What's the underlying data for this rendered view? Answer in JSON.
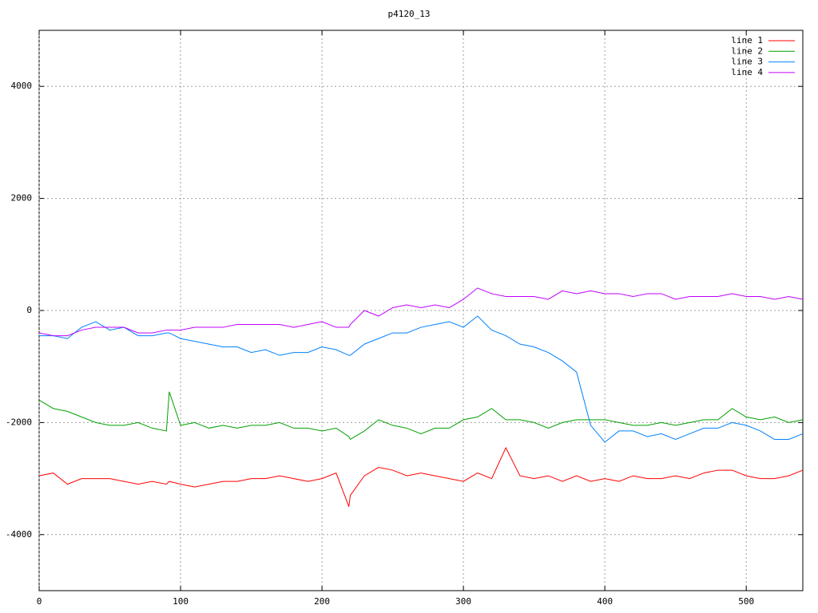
{
  "chart_data": {
    "type": "line",
    "title": "p4120_13",
    "x": [
      0,
      10,
      20,
      30,
      40,
      50,
      60,
      70,
      80,
      90,
      92,
      100,
      110,
      120,
      130,
      140,
      150,
      160,
      170,
      180,
      190,
      200,
      210,
      219,
      220,
      230,
      240,
      250,
      260,
      270,
      280,
      290,
      300,
      310,
      320,
      330,
      340,
      350,
      360,
      370,
      380,
      390,
      400,
      410,
      420,
      430,
      440,
      450,
      460,
      470,
      480,
      490,
      500,
      510,
      520,
      530,
      540
    ],
    "series": [
      {
        "name": "line 1",
        "color": "#ff0000",
        "values": [
          -2950,
          -2900,
          -3100,
          -3000,
          -3000,
          -3000,
          -3050,
          -3100,
          -3050,
          -3100,
          -3050,
          -3100,
          -3150,
          -3100,
          -3050,
          -3050,
          -3000,
          -3000,
          -2950,
          -3000,
          -3050,
          -3000,
          -2900,
          -3500,
          -3300,
          -2950,
          -2800,
          -2850,
          -2950,
          -2900,
          -2950,
          -3000,
          -3050,
          -2900,
          -3000,
          -2450,
          -2950,
          -3000,
          -2950,
          -3050,
          -2950,
          -3050,
          -3000,
          -3050,
          -2950,
          -3000,
          -3000,
          -2950,
          -3000,
          -2900,
          -2850,
          -2850,
          -2950,
          -3000,
          -3000,
          -2950,
          -2850
        ]
      },
      {
        "name": "line 2",
        "color": "#00a000",
        "values": [
          -1600,
          -1750,
          -1800,
          -1900,
          -2000,
          -2050,
          -2050,
          -2000,
          -2100,
          -2150,
          -1450,
          -2050,
          -2000,
          -2100,
          -2050,
          -2100,
          -2050,
          -2050,
          -2000,
          -2100,
          -2100,
          -2150,
          -2100,
          -2250,
          -2300,
          -2150,
          -1950,
          -2050,
          -2100,
          -2200,
          -2100,
          -2100,
          -1950,
          -1900,
          -1750,
          -1950,
          -1950,
          -2000,
          -2100,
          -2000,
          -1950,
          -1950,
          -1950,
          -2000,
          -2050,
          -2050,
          -2000,
          -2050,
          -2000,
          -1950,
          -1950,
          -1750,
          -1900,
          -1950,
          -1900,
          -2000,
          -1950
        ]
      },
      {
        "name": "line 3",
        "color": "#0080ff",
        "values": [
          -450,
          -450,
          -500,
          -300,
          -200,
          -350,
          -300,
          -450,
          -450,
          -400,
          -400,
          -500,
          -550,
          -600,
          -650,
          -650,
          -750,
          -700,
          -800,
          -750,
          -750,
          -650,
          -700,
          -800,
          -800,
          -600,
          -500,
          -400,
          -400,
          -300,
          -250,
          -200,
          -300,
          -100,
          -350,
          -450,
          -600,
          -650,
          -750,
          -900,
          -1100,
          -2050,
          -2350,
          -2150,
          -2150,
          -2250,
          -2200,
          -2300,
          -2200,
          -2100,
          -2100,
          -2000,
          -2050,
          -2150,
          -2300,
          -2300,
          -2200
        ]
      },
      {
        "name": "line 4",
        "color": "#c000ff",
        "values": [
          -400,
          -450,
          -450,
          -350,
          -300,
          -300,
          -300,
          -400,
          -400,
          -350,
          -350,
          -350,
          -300,
          -300,
          -300,
          -250,
          -250,
          -250,
          -250,
          -300,
          -250,
          -200,
          -300,
          -300,
          -250,
          0,
          -100,
          50,
          100,
          50,
          100,
          50,
          200,
          400,
          300,
          250,
          250,
          250,
          200,
          350,
          300,
          350,
          300,
          300,
          250,
          300,
          300,
          200,
          250,
          250,
          250,
          300,
          250,
          250,
          200,
          250,
          200
        ]
      }
    ],
    "xlim": [
      0,
      540
    ],
    "ylim": [
      -5000,
      5000
    ],
    "xticks": [
      0,
      100,
      200,
      300,
      400,
      500
    ],
    "yticks": [
      -4000,
      -2000,
      0,
      2000,
      4000
    ],
    "grid": true,
    "legend": "top-right"
  }
}
